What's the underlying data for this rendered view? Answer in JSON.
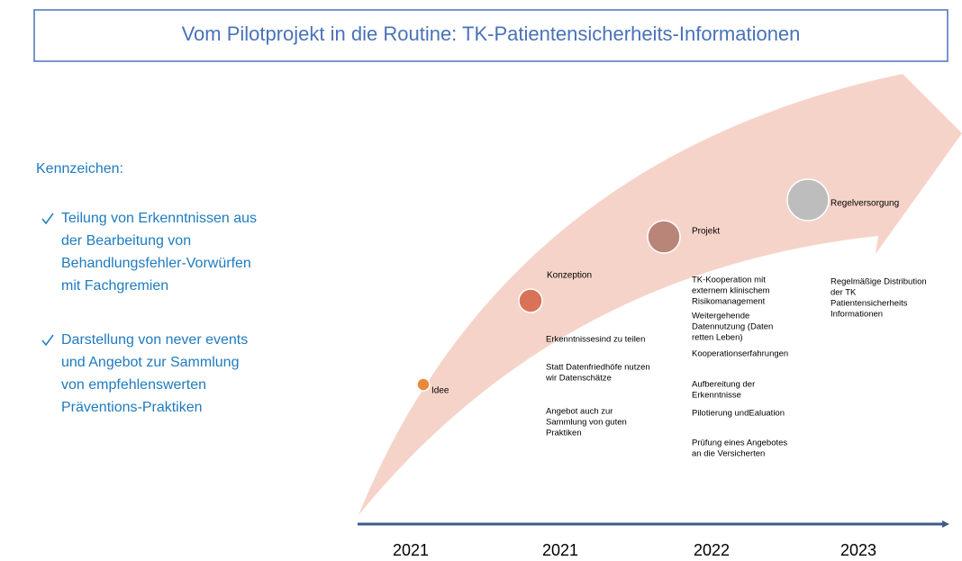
{
  "header": {
    "title": "Vom Pilotprojekt in die Routine: TK-Patientensicherheits-Informationen"
  },
  "sidebar": {
    "heading": "Kennzeichen:",
    "bullets": [
      [
        "Teilung von Erkenntnissen aus",
        "der Bearbeitung von",
        "Behandlungsfehler-Vorwürfen",
        "mit Fachgremien"
      ],
      [
        "Darstellung von never events",
        "und Angebot zur Sammlung",
        "von empfehlenswerten",
        "Präventions-Praktiken"
      ]
    ]
  },
  "stages": [
    {
      "label": "Idee",
      "notes": []
    },
    {
      "label": "Konzeption",
      "notes": [
        [
          "Erkenntnissesind zu teilen"
        ],
        [
          "Statt Datenfriedhöfe nutzen",
          "wir Datenschätze"
        ],
        [
          "Angebot auch zur",
          "Sammlung von guten",
          "Praktiken"
        ]
      ]
    },
    {
      "label": "Projekt",
      "notes": [
        [
          "TK-Kooperation mit",
          "externem klinischem",
          "Risikomanagement"
        ],
        [
          "Weitergehende",
          "Datennutzung (Daten",
          "retten Leben)"
        ],
        [
          "Kooperationserfahrungen"
        ],
        [
          "Aufbereitung der",
          "Erkenntnisse"
        ],
        [
          "Pilotierung undEaluation"
        ],
        [
          "Prüfung eines Angebotes",
          "an die Versicherten"
        ]
      ]
    },
    {
      "label": "Regelversorgung",
      "notes": [
        [
          "Regelmäßige Distribution",
          "der TK",
          "Patientensicherheits",
          "Informationen"
        ]
      ]
    }
  ],
  "timeline": {
    "years": [
      "2021",
      "2021",
      "2022",
      "2023"
    ]
  }
}
